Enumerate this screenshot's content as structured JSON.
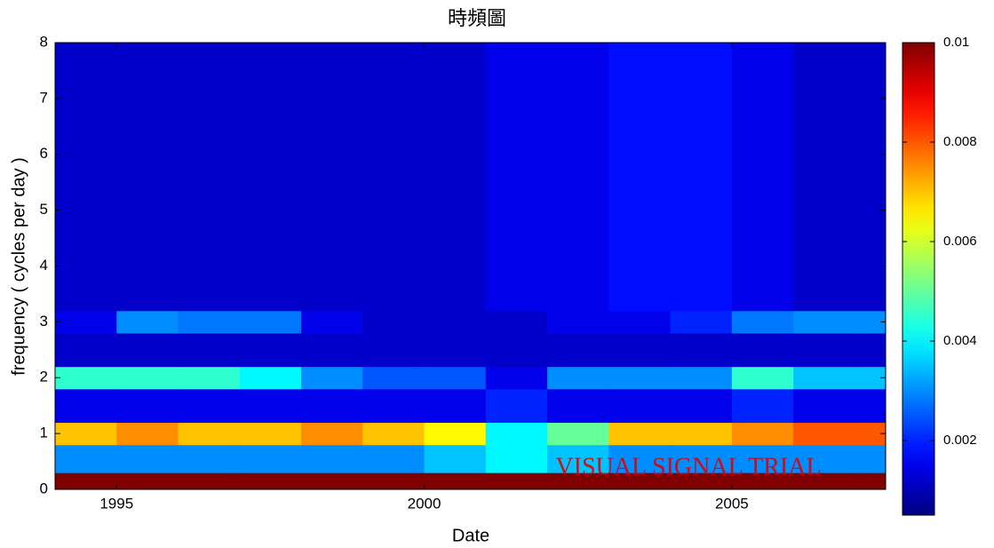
{
  "chart_data": {
    "type": "heatmap",
    "title": "時頻圖",
    "x_label": "Date",
    "y_label": "frequency ( cycles per day )",
    "annotation": "VISUAL SIGNAL TRIAL",
    "colormap": "jet",
    "x_edges": [
      1994,
      1995,
      1996,
      1997,
      1998,
      1999,
      2000,
      2001,
      2002,
      2003,
      2004,
      2005,
      2006,
      2007,
      2007.5
    ],
    "y_edges": [
      0,
      0.3,
      0.8,
      1.2,
      1.8,
      2.2,
      2.8,
      3.2,
      8
    ],
    "values": [
      [
        0.01,
        0.01,
        0.01,
        0.01,
        0.01,
        0.01,
        0.01,
        0.01,
        0.01,
        0.01,
        0.01,
        0.01,
        0.01,
        0.01
      ],
      [
        0.003,
        0.003,
        0.003,
        0.003,
        0.003,
        0.003,
        0.0035,
        0.004,
        0.0035,
        0.003,
        0.003,
        0.003,
        0.003,
        0.003
      ],
      [
        0.007,
        0.0075,
        0.007,
        0.007,
        0.0075,
        0.007,
        0.0065,
        0.004,
        0.005,
        0.007,
        0.007,
        0.0075,
        0.008,
        0.008
      ],
      [
        0.0015,
        0.0015,
        0.0015,
        0.0015,
        0.0015,
        0.0015,
        0.0015,
        0.002,
        0.0015,
        0.0015,
        0.0015,
        0.002,
        0.0015,
        0.0015
      ],
      [
        0.0045,
        0.0045,
        0.0045,
        0.004,
        0.003,
        0.0025,
        0.0025,
        0.0015,
        0.003,
        0.003,
        0.003,
        0.0045,
        0.0035,
        0.0035
      ],
      [
        0.0012,
        0.0012,
        0.0012,
        0.0012,
        0.0012,
        0.0012,
        0.0012,
        0.0012,
        0.0012,
        0.0012,
        0.0012,
        0.0012,
        0.0012,
        0.0012
      ],
      [
        0.0015,
        0.003,
        0.0028,
        0.0028,
        0.0015,
        0.0012,
        0.0012,
        0.0012,
        0.0015,
        0.0015,
        0.002,
        0.0028,
        0.003,
        0.003
      ],
      [
        0.0012,
        0.0012,
        0.0012,
        0.0012,
        0.0012,
        0.0012,
        0.0012,
        0.0015,
        0.0015,
        0.0018,
        0.0018,
        0.0015,
        0.0012,
        0.0012
      ]
    ],
    "xlim": [
      1994,
      2007.5
    ],
    "xticks": [
      1995,
      2000,
      2005
    ],
    "ylim": [
      0,
      8
    ],
    "yticks": [
      0,
      1,
      2,
      3,
      4,
      5,
      6,
      7,
      8
    ],
    "clim": [
      0.0005,
      0.01
    ],
    "cticks": [
      0.002,
      0.004,
      0.006,
      0.008,
      0.01
    ]
  }
}
